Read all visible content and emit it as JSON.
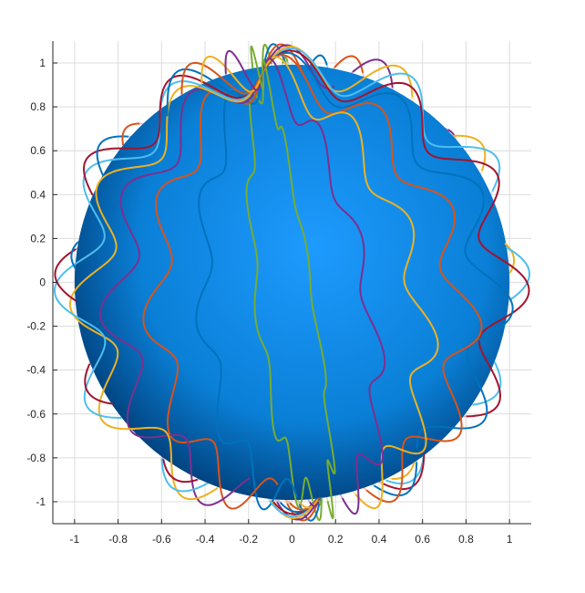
{
  "chart_data": {
    "type": "line",
    "title": "",
    "xlabel": "",
    "ylabel": "",
    "xlim": [
      -1.1,
      1.1
    ],
    "ylim": [
      -1.1,
      1.1
    ],
    "grid": true,
    "x_ticks": [
      -1,
      -0.8,
      -0.6,
      -0.4,
      -0.2,
      0,
      0.2,
      0.4,
      0.6,
      0.8,
      1
    ],
    "y_ticks": [
      -1,
      -0.8,
      -0.6,
      -0.4,
      -0.2,
      0,
      0.2,
      0.4,
      0.6,
      0.8,
      1
    ],
    "x_tick_labels": [
      "-1",
      "-0.8",
      "-0.6",
      "-0.4",
      "-0.2",
      "0",
      "0.2",
      "0.4",
      "0.6",
      "0.8",
      "1"
    ],
    "y_tick_labels": [
      "-1",
      "-0.8",
      "-0.6",
      "-0.4",
      "-0.2",
      "0",
      "0.2",
      "0.4",
      "0.6",
      "0.8",
      "1"
    ],
    "sphere": {
      "radius": 1,
      "center": [
        0,
        0
      ],
      "color_light": "#1e9bff",
      "color_mid": "#0a7fd6",
      "color_dark": "#003c75"
    },
    "orbit_waves": 12,
    "orbit_amplitude": 0.1,
    "series": [
      {
        "rotation_deg": -80,
        "color": "#77ac30"
      },
      {
        "rotation_deg": -65,
        "color": "#0072bd"
      },
      {
        "rotation_deg": -50,
        "color": "#d95319"
      },
      {
        "rotation_deg": -35,
        "color": "#7e2f8e"
      },
      {
        "rotation_deg": -20,
        "color": "#edb120"
      },
      {
        "rotation_deg": -5,
        "color": "#4dbeee"
      },
      {
        "rotation_deg": 10,
        "color": "#a2142f"
      },
      {
        "rotation_deg": 25,
        "color": "#0072bd"
      },
      {
        "rotation_deg": 40,
        "color": "#d95319"
      },
      {
        "rotation_deg": 55,
        "color": "#edb120"
      },
      {
        "rotation_deg": 70,
        "color": "#7e2f8e"
      },
      {
        "rotation_deg": 85,
        "color": "#77ac30"
      }
    ]
  }
}
